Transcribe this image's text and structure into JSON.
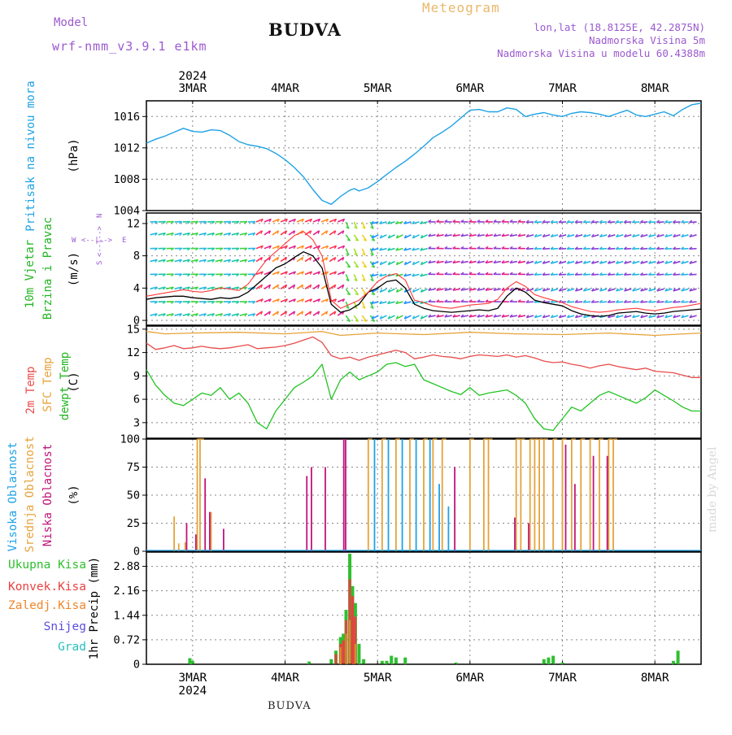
{
  "header": {
    "model_label": "Model",
    "model_name": "wrf-nmm_v3.9.1 e1km",
    "station": "BUDVA",
    "meteogram_label": "Meteogram",
    "lonlat": "lon,lat (18.8125E, 42.2875N)",
    "elevation": "Nadmorska Visina 5m",
    "model_elevation": "Nadmorska Visina u modelu 60.4388m",
    "watermark": "made by Angel",
    "footer_station": "BUDVA"
  },
  "colors": {
    "pressure": "#1fa2e6",
    "wind_speed": "#000000",
    "wind_gust": "#ff3b3b",
    "temp_2m": "#e84c4c",
    "temp_sfc": "#e6a33a",
    "dewpoint": "#22c322",
    "cloud_high": "#1fa2e6",
    "cloud_mid": "#e6a33a",
    "cloud_low": "#c0147a",
    "precip_total": "#2fbf2f",
    "precip_conv": "#e84040",
    "precip_frz": "#f0862a",
    "precip_snow": "#5a4de0",
    "precip_grad": "#27c0c0",
    "axis_title": "#1fa2e6",
    "compass": "#9b59d0"
  },
  "time_axis": {
    "top_year": "2024",
    "bottom_year": "2024",
    "days": [
      "3MAR",
      "4MAR",
      "5MAR",
      "6MAR",
      "7MAR",
      "8MAR"
    ],
    "start_day_offset": -0.5,
    "end_day_offset": 5.5
  },
  "chart_data": [
    {
      "type": "line",
      "panel": "pressure",
      "title_lines": [
        "Pritisak na nivou mora"
      ],
      "ylabel": "(hPa)",
      "ylim": [
        1004,
        1018
      ],
      "yticks": [
        1004,
        1008,
        1012,
        1016
      ],
      "grid": true,
      "series": [
        {
          "x": [
            -0.5,
            -0.4,
            -0.3,
            -0.2,
            -0.1,
            0.0,
            0.1,
            0.2,
            0.3,
            0.4,
            0.5,
            0.6,
            0.7,
            0.8,
            0.9,
            1.0,
            1.1,
            1.2,
            1.3,
            1.4,
            1.5,
            1.6,
            1.7,
            1.75,
            1.8,
            1.9,
            2.0,
            2.1,
            2.2,
            2.3,
            2.4,
            2.5,
            2.6,
            2.7,
            2.8,
            2.9,
            3.0,
            3.1,
            3.2,
            3.3,
            3.4,
            3.5,
            3.6,
            3.7,
            3.8,
            3.9,
            4.0,
            4.1,
            4.2,
            4.3,
            4.4,
            4.5,
            4.6,
            4.7,
            4.8,
            4.9,
            5.0,
            5.1,
            5.2,
            5.3,
            5.4,
            5.5
          ],
          "y": [
            1012.6,
            1013.1,
            1013.5,
            1014.0,
            1014.5,
            1014.1,
            1014.0,
            1014.3,
            1014.2,
            1013.6,
            1012.8,
            1012.4,
            1012.2,
            1011.9,
            1011.3,
            1010.5,
            1009.5,
            1008.3,
            1006.7,
            1005.3,
            1004.8,
            1005.8,
            1006.6,
            1006.8,
            1006.5,
            1006.9,
            1007.7,
            1008.6,
            1009.5,
            1010.3,
            1011.2,
            1012.2,
            1013.3,
            1014.0,
            1014.8,
            1015.8,
            1016.8,
            1016.9,
            1016.6,
            1016.6,
            1017.1,
            1016.9,
            1016.0,
            1016.3,
            1016.5,
            1016.2,
            1016.0,
            1016.4,
            1016.6,
            1016.5,
            1016.3,
            1016.0,
            1016.4,
            1016.8,
            1016.2,
            1016.0,
            1016.3,
            1016.6,
            1016.1,
            1016.9,
            1017.5,
            1017.7
          ]
        }
      ]
    },
    {
      "type": "line",
      "panel": "wind",
      "title_lines": [
        "10m Vjetar",
        "Brzina i Pravac"
      ],
      "ylabel": "(m/s)",
      "compass": [
        "W",
        "<--|-->",
        "E",
        "S",
        "<--|-->",
        "N"
      ],
      "ylim": [
        -0.6,
        13.3
      ],
      "yticks": [
        0,
        4,
        8,
        12
      ],
      "grid": true,
      "series": [
        {
          "name": "speed",
          "x": [
            -0.5,
            -0.4,
            -0.3,
            -0.2,
            -0.1,
            0.0,
            0.1,
            0.2,
            0.3,
            0.4,
            0.5,
            0.6,
            0.7,
            0.8,
            0.9,
            1.0,
            1.1,
            1.2,
            1.3,
            1.4,
            1.5,
            1.6,
            1.7,
            1.8,
            1.9,
            2.0,
            2.1,
            2.2,
            2.3,
            2.4,
            2.5,
            2.6,
            2.7,
            2.8,
            2.9,
            3.0,
            3.1,
            3.2,
            3.3,
            3.4,
            3.5,
            3.6,
            3.7,
            3.8,
            3.9,
            4.0,
            4.1,
            4.2,
            4.3,
            4.4,
            4.5,
            4.6,
            4.7,
            4.8,
            4.9,
            5.0,
            5.1,
            5.2,
            5.3,
            5.4,
            5.5
          ],
          "y": [
            2.6,
            2.8,
            2.9,
            3.0,
            3.0,
            2.8,
            2.7,
            2.6,
            2.8,
            2.7,
            2.9,
            3.5,
            4.5,
            5.5,
            6.5,
            7.0,
            7.8,
            8.5,
            8.0,
            6.5,
            2.0,
            1.0,
            1.3,
            2.0,
            3.5,
            4.0,
            4.8,
            5.0,
            4.0,
            2.0,
            1.5,
            1.2,
            1.1,
            1.0,
            1.1,
            1.2,
            1.3,
            1.2,
            1.5,
            3.0,
            4.0,
            3.5,
            2.5,
            2.2,
            2.0,
            1.8,
            1.2,
            0.8,
            0.6,
            0.5,
            0.6,
            0.9,
            1.0,
            1.1,
            0.9,
            0.8,
            0.9,
            1.1,
            1.2,
            1.3,
            1.4
          ]
        },
        {
          "name": "gust",
          "x": [
            -0.5,
            -0.4,
            -0.3,
            -0.2,
            -0.1,
            0.0,
            0.1,
            0.2,
            0.3,
            0.4,
            0.5,
            0.6,
            0.7,
            0.8,
            0.9,
            1.0,
            1.1,
            1.2,
            1.3,
            1.4,
            1.5,
            1.6,
            1.7,
            1.8,
            1.9,
            2.0,
            2.1,
            2.2,
            2.3,
            2.4,
            2.5,
            2.6,
            2.7,
            2.8,
            2.9,
            3.0,
            3.1,
            3.2,
            3.3,
            3.4,
            3.5,
            3.6,
            3.7,
            3.8,
            3.9,
            4.0,
            4.1,
            4.2,
            4.3,
            4.4,
            4.5,
            4.6,
            4.7,
            4.8,
            4.9,
            5.0,
            5.1,
            5.2,
            5.3,
            5.4,
            5.5
          ],
          "y": [
            3.0,
            3.2,
            3.4,
            3.6,
            3.8,
            3.6,
            3.5,
            3.7,
            4.0,
            3.9,
            3.7,
            4.5,
            6.0,
            7.5,
            8.5,
            9.5,
            10.5,
            11.0,
            10.0,
            8.0,
            2.5,
            1.5,
            2.0,
            2.5,
            3.5,
            4.8,
            5.5,
            5.8,
            5.0,
            2.5,
            2.2,
            1.8,
            1.6,
            1.5,
            1.7,
            1.9,
            2.0,
            2.1,
            2.6,
            4.0,
            4.8,
            4.2,
            3.2,
            2.8,
            2.5,
            2.2,
            1.7,
            1.4,
            1.1,
            1.0,
            1.1,
            1.3,
            1.4,
            1.5,
            1.3,
            1.2,
            1.4,
            1.6,
            1.7,
            1.9,
            2.1
          ]
        }
      ]
    },
    {
      "type": "line",
      "panel": "temperature",
      "title_lines": [
        "2m Temp",
        "SFC Temp",
        "dewpt Temp"
      ],
      "ylabel": "(C)",
      "ylim": [
        1,
        15.4
      ],
      "yticks": [
        3,
        6,
        9,
        12,
        15
      ],
      "grid": true,
      "series": [
        {
          "name": "2m Temp",
          "x": [
            -0.5,
            -0.4,
            -0.3,
            -0.2,
            -0.1,
            0.0,
            0.1,
            0.2,
            0.3,
            0.4,
            0.5,
            0.6,
            0.7,
            0.8,
            0.9,
            1.0,
            1.1,
            1.2,
            1.3,
            1.4,
            1.5,
            1.6,
            1.7,
            1.8,
            1.9,
            2.0,
            2.1,
            2.2,
            2.3,
            2.4,
            2.5,
            2.6,
            2.7,
            2.8,
            2.9,
            3.0,
            3.1,
            3.2,
            3.3,
            3.4,
            3.5,
            3.6,
            3.7,
            3.8,
            3.9,
            4.0,
            4.1,
            4.2,
            4.3,
            4.4,
            4.5,
            4.6,
            4.7,
            4.8,
            4.9,
            5.0,
            5.1,
            5.2,
            5.3,
            5.4,
            5.5
          ],
          "y": [
            13.2,
            12.4,
            12.6,
            12.9,
            12.5,
            12.6,
            12.8,
            12.6,
            12.5,
            12.6,
            12.8,
            13.0,
            12.5,
            12.6,
            12.7,
            12.9,
            13.2,
            13.6,
            14.0,
            13.3,
            11.6,
            11.2,
            11.4,
            11.0,
            11.4,
            11.7,
            12.0,
            12.3,
            12.0,
            11.2,
            11.4,
            11.7,
            11.5,
            11.4,
            11.2,
            11.5,
            11.7,
            11.6,
            11.5,
            11.7,
            11.4,
            11.6,
            11.3,
            10.9,
            10.7,
            10.8,
            10.5,
            10.3,
            10.0,
            10.3,
            10.5,
            10.2,
            10.0,
            9.8,
            10.0,
            9.6,
            9.5,
            9.4,
            9.1,
            8.8,
            8.8
          ]
        },
        {
          "name": "SFC Temp",
          "x": [
            -0.5,
            -0.3,
            0.0,
            0.5,
            1.0,
            1.4,
            1.6,
            2.0,
            2.5,
            3.0,
            3.5,
            4.0,
            4.5,
            5.0,
            5.5
          ],
          "y": [
            14.7,
            14.4,
            14.5,
            14.6,
            14.4,
            14.7,
            14.2,
            14.5,
            14.3,
            14.6,
            14.4,
            14.3,
            14.5,
            14.2,
            14.5
          ]
        },
        {
          "name": "dewpt Temp",
          "x": [
            -0.5,
            -0.4,
            -0.3,
            -0.2,
            -0.1,
            0.0,
            0.1,
            0.2,
            0.3,
            0.4,
            0.5,
            0.6,
            0.7,
            0.8,
            0.9,
            1.0,
            1.1,
            1.2,
            1.3,
            1.4,
            1.5,
            1.6,
            1.7,
            1.8,
            1.9,
            2.0,
            2.1,
            2.2,
            2.3,
            2.4,
            2.5,
            2.6,
            2.7,
            2.8,
            2.9,
            3.0,
            3.1,
            3.2,
            3.3,
            3.4,
            3.5,
            3.6,
            3.7,
            3.8,
            3.9,
            4.0,
            4.1,
            4.2,
            4.3,
            4.4,
            4.5,
            4.6,
            4.7,
            4.8,
            4.9,
            5.0,
            5.1,
            5.2,
            5.3,
            5.4,
            5.5
          ],
          "y": [
            9.8,
            7.8,
            6.5,
            5.5,
            5.2,
            6.0,
            6.8,
            6.5,
            7.5,
            6.0,
            6.8,
            5.5,
            3.0,
            2.2,
            4.5,
            6.0,
            7.5,
            8.2,
            9.0,
            10.5,
            6.0,
            8.5,
            9.5,
            8.5,
            9.0,
            9.5,
            10.5,
            10.7,
            10.2,
            10.5,
            8.5,
            8.0,
            7.5,
            7.0,
            6.6,
            7.5,
            6.5,
            6.8,
            7.0,
            7.2,
            6.5,
            5.5,
            3.5,
            2.2,
            2.0,
            3.5,
            5.0,
            4.5,
            5.5,
            6.5,
            7.0,
            6.5,
            6.0,
            5.5,
            6.2,
            7.2,
            6.5,
            5.8,
            5.0,
            4.5,
            4.5
          ]
        }
      ]
    },
    {
      "type": "bar",
      "panel": "cloud",
      "title_lines": [
        "Visoka Oblacnost",
        "Srednja Oblacnost",
        "Niska Oblacnost"
      ],
      "ylabel": "(%)",
      "ylim": [
        0,
        100
      ],
      "yticks": [
        0,
        25,
        50,
        75,
        100
      ],
      "grid": true,
      "series": [
        {
          "name": "Srednja Oblacnost",
          "x": [
            -0.2,
            -0.15,
            -0.08,
            0.05,
            0.08,
            0.2,
            1.9,
            2.05,
            2.2,
            2.35,
            2.5,
            2.6,
            2.7,
            3.0,
            3.15,
            3.2,
            3.5,
            3.55,
            3.65,
            3.7,
            3.75,
            3.8,
            3.9,
            4.0,
            4.1,
            4.2,
            4.3,
            4.4,
            4.5,
            4.55
          ],
          "y": [
            31,
            7,
            8,
            100,
            100,
            35,
            100,
            100,
            100,
            100,
            100,
            100,
            100,
            100,
            100,
            100,
            100,
            100,
            100,
            100,
            100,
            100,
            100,
            100,
            100,
            100,
            100,
            100,
            100,
            100
          ]
        },
        {
          "name": "Visoka Oblacnost",
          "x": [
            1.95,
            2.1,
            2.25,
            2.4,
            2.55,
            2.65,
            2.75
          ],
          "y": [
            100,
            100,
            100,
            100,
            100,
            60,
            40
          ]
        },
        {
          "name": "Niska Oblacnost",
          "x": [
            -0.1,
            0.0,
            0.1,
            0.15,
            0.3,
            1.2,
            1.25,
            1.4,
            1.6,
            1.62,
            2.8,
            3.45,
            3.6,
            4.0,
            4.1,
            4.3,
            4.45
          ],
          "y": [
            25,
            15,
            65,
            35,
            20,
            67,
            75,
            75,
            100,
            100,
            75,
            30,
            25,
            95,
            60,
            85,
            85
          ]
        }
      ]
    },
    {
      "type": "bar",
      "panel": "precip",
      "title_lines": [
        "1hr Precip (mm)"
      ],
      "legend": [
        "Ukupna Kisa",
        "Konvek.Kisa",
        "Zaledj.Kisa",
        "Snijeg",
        "Grad"
      ],
      "ylim": [
        0,
        3.3
      ],
      "yticks": [
        0,
        0.72,
        1.44,
        2.16,
        2.88
      ],
      "grid": true,
      "series": [
        {
          "name": "Ukupna Kisa",
          "x": [
            -0.03,
            0.0,
            1.26,
            1.5,
            1.55,
            1.6,
            1.63,
            1.66,
            1.7,
            1.73,
            1.76,
            1.8,
            1.85,
            2.05,
            2.1,
            2.15,
            2.2,
            2.3,
            2.85,
            3.8,
            3.85,
            3.9,
            4.0,
            5.2,
            5.25
          ],
          "y": [
            0.18,
            0.1,
            0.08,
            0.15,
            0.4,
            0.8,
            0.9,
            1.6,
            3.25,
            2.3,
            1.8,
            0.6,
            0.15,
            0.1,
            0.1,
            0.25,
            0.2,
            0.2,
            0.05,
            0.15,
            0.2,
            0.25,
            0.05,
            0.1,
            0.4
          ]
        },
        {
          "name": "Konvek.Kisa",
          "x": [
            1.55,
            1.6,
            1.63,
            1.66,
            1.7,
            1.73,
            1.76
          ],
          "y": [
            0.3,
            0.6,
            0.7,
            1.3,
            2.5,
            2.0,
            1.4
          ]
        },
        {
          "name": "Zaledj.Kisa",
          "x": [
            1.6,
            1.66,
            1.7,
            1.76
          ],
          "y": [
            0.5,
            0.9,
            1.3,
            0.6
          ]
        }
      ]
    }
  ]
}
